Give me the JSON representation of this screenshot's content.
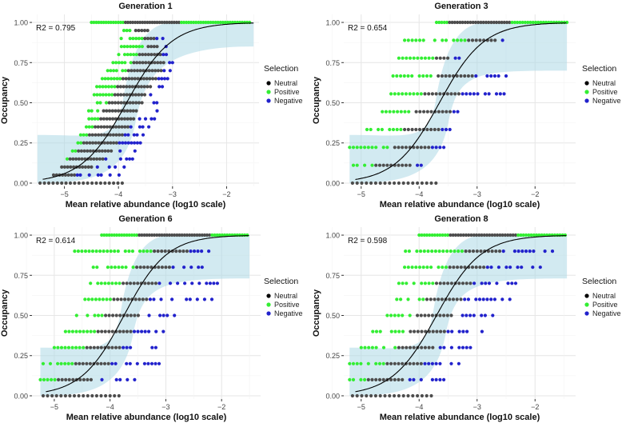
{
  "chart_data": [
    {
      "type": "scatter",
      "title": "Generation 1",
      "xlabel": "Mean relative abundance (log10 scale)",
      "ylabel": "Occupancy",
      "r2_label": "R2 = 0.795",
      "xlim": [
        -5.6,
        -1.4
      ],
      "ylim": [
        -0.02,
        1.05
      ],
      "x_ticks": [
        -5,
        -4,
        -3,
        -2
      ],
      "y_ticks": [
        0.0,
        0.25,
        0.5,
        0.75,
        1.0
      ],
      "y_tick_labels": [
        "0.00",
        "0.25",
        "0.50",
        "0.75",
        "1.00"
      ],
      "fit": {
        "midpoint": -3.85,
        "slope": 2.4
      },
      "band": {
        "low": -5.5,
        "high": -1.5,
        "top": 0.85
      },
      "legend": {
        "title": "Selection",
        "entries": [
          "Neutral",
          "Positive",
          "Negative"
        ],
        "colors": [
          "#000000",
          "#33ee33",
          "#2222cc"
        ]
      },
      "n_levels": 20,
      "positive_upper_x": [
        -5.5,
        -5.2,
        -5.05,
        -4.95,
        -4.85,
        -4.75,
        -4.7,
        -4.65,
        -4.6,
        -4.55,
        -4.5,
        -4.45,
        -4.4,
        -4.3,
        -4.2,
        -4.1,
        -4.05,
        -4.0,
        -3.95,
        -3.9,
        -3.8
      ],
      "negative_upper_x": [
        -4.2,
        -3.9,
        -3.8,
        -3.7,
        -3.6,
        -3.5,
        -3.45,
        -3.4,
        -3.3,
        -3.25,
        -3.2,
        -3.15,
        -3.1,
        -3.05,
        -3.0,
        -3.0,
        -3.05,
        -3.1,
        -3.15,
        -3.3,
        -3.4
      ],
      "top_row": {
        "x_start": -4.5,
        "x_end": -1.55,
        "neutral_start": -3.9,
        "neutral_end": -2.85
      }
    },
    {
      "type": "scatter",
      "title": "Generation 3",
      "xlabel": "Mean relative abundance (log10 scale)",
      "ylabel": "Occupancy",
      "r2_label": "R2 = 0.654",
      "xlim": [
        -5.3,
        -1.3
      ],
      "ylim": [
        -0.02,
        1.05
      ],
      "x_ticks": [
        -5,
        -4,
        -3,
        -2
      ],
      "y_ticks": [
        0.0,
        0.25,
        0.5,
        0.75,
        1.0
      ],
      "y_tick_labels": [
        "0.00",
        "0.25",
        "0.50",
        "0.75",
        "1.00"
      ],
      "fit": {
        "midpoint": -3.65,
        "slope": 2.6
      },
      "band": {
        "low": -5.2,
        "high": -1.45,
        "top": 0.7
      },
      "legend": {
        "title": "Selection",
        "entries": [
          "Neutral",
          "Positive",
          "Negative"
        ],
        "colors": [
          "#000000",
          "#33ee33",
          "#2222cc"
        ]
      },
      "n_levels": 9,
      "positive_upper_x": [
        -5.2,
        -5.2,
        -5.2,
        -4.9,
        -4.7,
        -4.55,
        -4.45,
        -4.35,
        -4.25,
        -3.9
      ],
      "negative_upper_x": [
        -4.2,
        -3.8,
        -3.5,
        -3.4,
        -3.3,
        -2.5,
        -2.5,
        -3.3,
        -2.5,
        -2.5
      ],
      "top_row": {
        "x_start": -3.7,
        "x_end": -1.45,
        "neutral_start": -3.5,
        "neutral_end": -2.4
      }
    },
    {
      "type": "scatter",
      "title": "Generation 6",
      "xlabel": "Mean relative abundance (log10 scale)",
      "ylabel": "Occupancy",
      "r2_label": "R2 = 0.614",
      "xlim": [
        -5.4,
        -1.3
      ],
      "ylim": [
        -0.02,
        1.05
      ],
      "x_ticks": [
        -5,
        -4,
        -3,
        -2
      ],
      "y_ticks": [
        0.0,
        0.25,
        0.5,
        0.75,
        1.0
      ],
      "y_tick_labels": [
        "0.00",
        "0.25",
        "0.50",
        "0.75",
        "1.00"
      ],
      "fit": {
        "midpoint": -3.75,
        "slope": 2.6
      },
      "band": {
        "low": -5.25,
        "high": -1.5,
        "top": 0.73
      },
      "legend": {
        "title": "Selection",
        "entries": [
          "Neutral",
          "Positive",
          "Negative"
        ],
        "colors": [
          "#000000",
          "#33ee33",
          "#2222cc"
        ]
      },
      "n_levels": 10,
      "positive_upper_x": [
        -5.25,
        -5.25,
        -5.2,
        -5.0,
        -4.8,
        -4.6,
        -4.45,
        -4.35,
        -4.3,
        -4.7,
        -4.1
      ],
      "negative_upper_x": [
        -4.2,
        -3.5,
        -3.1,
        -3.0,
        -2.9,
        -2.8,
        -2.1,
        -2.0,
        -2.3,
        -2.2,
        -1.5
      ],
      "top_row": {
        "x_start": -4.15,
        "x_end": -1.5,
        "neutral_start": -3.5,
        "neutral_end": -2.2
      }
    },
    {
      "type": "scatter",
      "title": "Generation 8",
      "xlabel": "Mean relative abundance (log10 scale)",
      "ylabel": "Occupancy",
      "r2_label": "R2 = 0.598",
      "xlim": [
        -5.3,
        -1.3
      ],
      "ylim": [
        -0.02,
        1.05
      ],
      "x_ticks": [
        -5,
        -4,
        -3,
        -2
      ],
      "y_ticks": [
        0.0,
        0.25,
        0.5,
        0.75,
        1.0
      ],
      "y_tick_labels": [
        "0.00",
        "0.25",
        "0.50",
        "0.75",
        "1.00"
      ],
      "fit": {
        "midpoint": -3.7,
        "slope": 2.6
      },
      "band": {
        "low": -5.2,
        "high": -1.45,
        "top": 0.73
      },
      "legend": {
        "title": "Selection",
        "entries": [
          "Neutral",
          "Positive",
          "Negative"
        ],
        "colors": [
          "#000000",
          "#33ee33",
          "#2222cc"
        ]
      },
      "n_levels": 10,
      "positive_upper_x": [
        -5.2,
        -5.2,
        -5.2,
        -5.0,
        -4.8,
        -4.55,
        -4.45,
        -4.35,
        -4.25,
        -4.3,
        -4.05
      ],
      "negative_upper_x": [
        -4.2,
        -3.4,
        -3.1,
        -3.0,
        -2.9,
        -2.7,
        -2.4,
        -2.3,
        -1.6,
        -1.7,
        -1.45
      ],
      "top_row": {
        "x_start": -4.0,
        "x_end": -1.45,
        "neutral_start": -3.5,
        "neutral_end": -2.3
      }
    }
  ]
}
